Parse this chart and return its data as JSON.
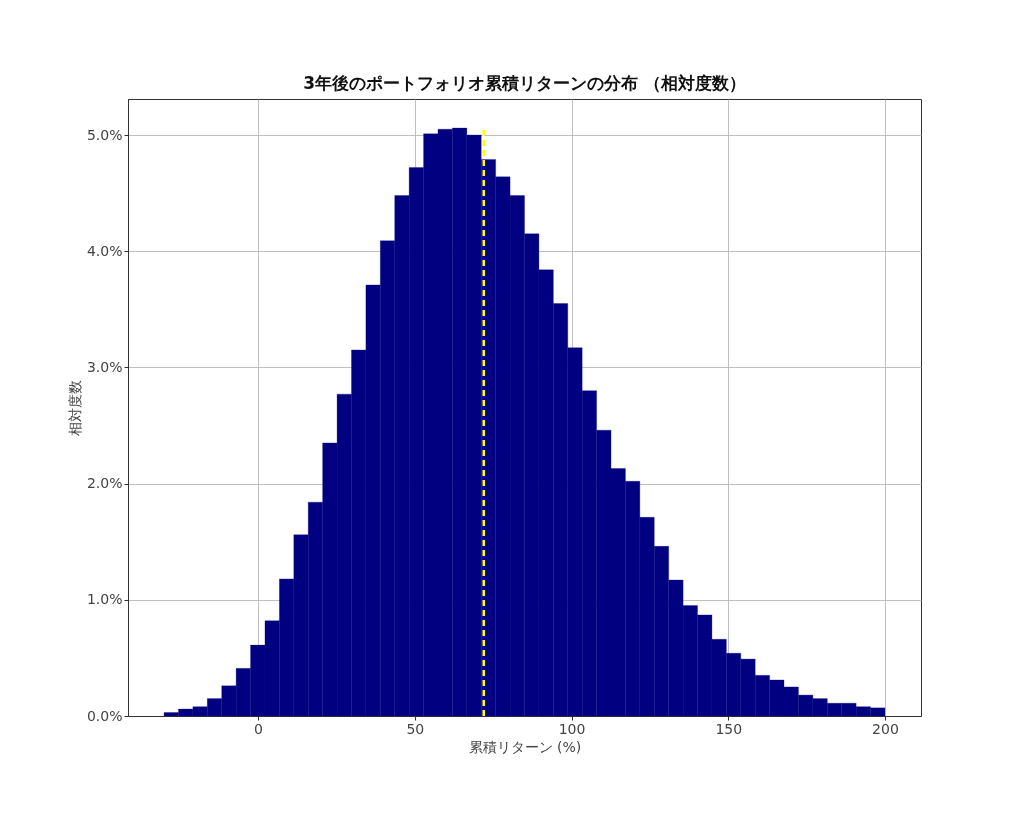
{
  "chart_data": {
    "type": "histogram",
    "title": "3年後のポートフォリオ累積リターンの分布 （相対度数）",
    "xlabel": "累積リターン (%)",
    "ylabel": "相対度数",
    "bins": [
      -30,
      -25.4,
      -20.8,
      -16.2,
      -11.6,
      -7,
      -2.4,
      2.2,
      6.8,
      11.4,
      16,
      20.6,
      25.2,
      29.8,
      34.4,
      39,
      43.6,
      48.2,
      52.8,
      57.4,
      62,
      66.6,
      71.2,
      75.8,
      80.4,
      85,
      89.6,
      94.2,
      98.8,
      103.4,
      108,
      112.6,
      117.2,
      121.8,
      126.4,
      131,
      135.6,
      140.2,
      144.8,
      149.4,
      154,
      158.6,
      163.2,
      167.8,
      172.4,
      177,
      181.6,
      186.2,
      190.8,
      195.4,
      200
    ],
    "values": [
      0.03,
      0.06,
      0.08,
      0.15,
      0.26,
      0.41,
      0.61,
      0.82,
      1.18,
      1.56,
      1.84,
      2.35,
      2.77,
      3.15,
      3.71,
      4.09,
      4.48,
      4.72,
      5.01,
      5.05,
      5.06,
      5.0,
      4.79,
      4.64,
      4.48,
      4.15,
      3.84,
      3.55,
      3.17,
      2.8,
      2.46,
      2.13,
      2.02,
      1.71,
      1.46,
      1.17,
      0.95,
      0.87,
      0.66,
      0.54,
      0.49,
      0.35,
      0.31,
      0.25,
      0.18,
      0.15,
      0.11,
      0.11,
      0.08,
      0.07
    ],
    "color": "#000080",
    "xlim": [
      -41.5,
      211.5
    ],
    "xticks": [
      0,
      50,
      100,
      150,
      200
    ],
    "ylim": [
      0,
      5.31
    ],
    "yticks": [
      {
        "value": 0,
        "label": "0.0%"
      },
      {
        "value": 1,
        "label": "1.0%"
      },
      {
        "value": 2,
        "label": "2.0%"
      },
      {
        "value": 3,
        "label": "3.0%"
      },
      {
        "value": 4,
        "label": "4.0%"
      },
      {
        "value": 5,
        "label": "5.0%"
      }
    ],
    "grid": true,
    "ref_lines": [
      {
        "axis": "x",
        "value": 72,
        "color": "#ffff00",
        "line_style": "dashed"
      }
    ]
  }
}
